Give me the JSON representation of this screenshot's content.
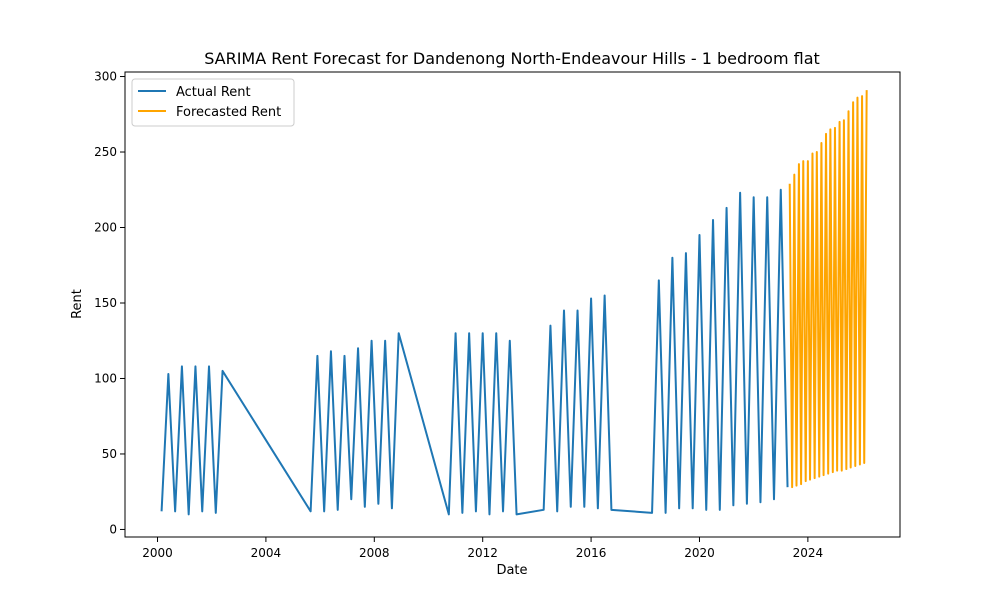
{
  "chart_data": {
    "type": "line",
    "title": "SARIMA Rent Forecast for Dandenong North-Endeavour Hills - 1 bedroom flat",
    "xlabel": "Date",
    "ylabel": "Rent",
    "x_ticks": [
      2000,
      2004,
      2008,
      2012,
      2016,
      2020,
      2024
    ],
    "y_ticks": [
      0,
      50,
      100,
      150,
      200,
      250,
      300
    ],
    "xlim": [
      1998.8,
      2027.4
    ],
    "ylim": [
      -5,
      303
    ],
    "grid": false,
    "legend": "top-left",
    "series": [
      {
        "name": "Actual Rent",
        "color": "#1f77b4",
        "x": [
          2000.15,
          2000.4,
          2000.65,
          2000.9,
          2001.15,
          2001.4,
          2001.65,
          2001.9,
          2002.15,
          2002.4,
          2005.65,
          2005.9,
          2006.15,
          2006.4,
          2006.65,
          2006.9,
          2007.15,
          2007.4,
          2007.65,
          2007.9,
          2008.15,
          2008.4,
          2008.65,
          2008.9,
          2010.75,
          2011.0,
          2011.25,
          2011.5,
          2011.75,
          2012.0,
          2012.25,
          2012.5,
          2012.75,
          2013.0,
          2013.25,
          2014.25,
          2014.5,
          2014.75,
          2015.0,
          2015.25,
          2015.5,
          2015.75,
          2016.0,
          2016.25,
          2016.5,
          2016.75,
          2018.25,
          2018.5,
          2018.75,
          2019.0,
          2019.25,
          2019.5,
          2019.75,
          2020.0,
          2020.25,
          2020.5,
          2020.75,
          2021.0,
          2021.25,
          2021.5,
          2021.75,
          2022.0,
          2022.25,
          2022.5,
          2022.75,
          2023.0,
          2023.25
        ],
        "values": [
          12,
          103,
          12,
          108,
          10,
          108,
          12,
          108,
          11,
          105,
          12,
          115,
          12,
          118,
          13,
          115,
          20,
          120,
          15,
          125,
          17,
          125,
          14,
          130,
          10,
          130,
          11,
          130,
          12,
          130,
          10,
          130,
          12,
          125,
          10,
          13,
          135,
          12,
          145,
          15,
          145,
          15,
          153,
          14,
          155,
          13,
          11,
          165,
          11,
          180,
          14,
          183,
          14,
          195,
          13,
          205,
          13,
          213,
          16,
          223,
          17,
          220,
          18,
          220,
          20,
          225,
          28
        ]
      },
      {
        "name": "Forecasted Rent",
        "color": "#ffa500",
        "x": [
          2023.33,
          2023.42,
          2023.5,
          2023.58,
          2023.67,
          2023.75,
          2023.83,
          2023.92,
          2024.0,
          2024.08,
          2024.17,
          2024.25,
          2024.33,
          2024.42,
          2024.5,
          2024.58,
          2024.67,
          2024.75,
          2024.83,
          2024.92,
          2025.0,
          2025.08,
          2025.17,
          2025.25,
          2025.33,
          2025.42,
          2025.5,
          2025.58,
          2025.67,
          2025.75,
          2025.83,
          2025.92,
          2026.0,
          2026.08,
          2026.17
        ],
        "values": [
          229,
          28,
          235,
          29,
          242,
          30,
          244,
          32,
          244,
          33,
          249,
          34,
          250,
          35,
          256,
          36,
          262,
          37,
          265,
          38,
          266,
          39,
          270,
          39,
          271,
          40,
          277,
          41,
          283,
          42,
          286,
          43,
          287,
          44,
          291
        ]
      }
    ]
  }
}
